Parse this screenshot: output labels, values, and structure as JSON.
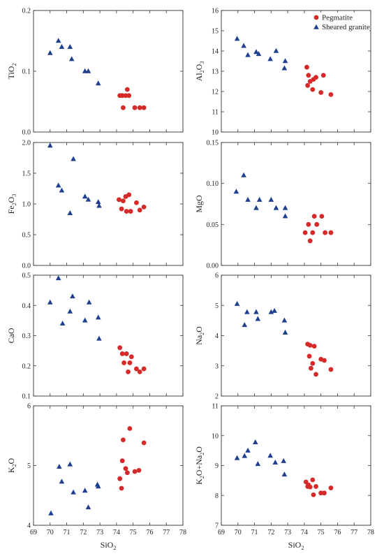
{
  "chart_data": {
    "type": "scatter",
    "legend": {
      "placement": "top-right of upper-right panel",
      "entries": [
        {
          "label": "Pegmatite",
          "marker": "circle",
          "color": "#d62a2a"
        },
        {
          "label": "Sheared granite",
          "marker": "triangle",
          "color": "#1f3f8f"
        }
      ]
    },
    "x_axis": {
      "label_main": "SiO",
      "label_sub": "2",
      "ticks": [
        "69",
        "70",
        "71",
        "72",
        "73",
        "74",
        "75",
        "76",
        "77",
        "78"
      ],
      "range": [
        69,
        78
      ]
    },
    "panels": [
      {
        "id": "tio2",
        "ylabel": {
          "main": "TiO",
          "sub": "2",
          "tail": ""
        },
        "yticks": [
          "0.0",
          "0.1",
          "0.2"
        ],
        "yrange": [
          0,
          0.2
        ],
        "sheared_granite": [
          [
            70.0,
            0.13
          ],
          [
            70.5,
            0.15
          ],
          [
            70.7,
            0.14
          ],
          [
            71.2,
            0.14
          ],
          [
            71.3,
            0.12
          ],
          [
            72.1,
            0.1
          ],
          [
            72.3,
            0.1
          ],
          [
            72.9,
            0.08
          ]
        ],
        "pegmatite": [
          [
            74.2,
            0.06
          ],
          [
            74.35,
            0.06
          ],
          [
            74.4,
            0.04
          ],
          [
            74.55,
            0.06
          ],
          [
            74.65,
            0.07
          ],
          [
            74.75,
            0.06
          ],
          [
            75.1,
            0.04
          ],
          [
            75.4,
            0.04
          ],
          [
            75.65,
            0.04
          ]
        ]
      },
      {
        "id": "al2o3",
        "ylabel": {
          "main": "Al",
          "sub": "2",
          "tail": "O",
          "sub2": "3"
        },
        "yticks": [
          "10",
          "11",
          "12",
          "13",
          "14",
          "15",
          "16"
        ],
        "yrange": [
          10,
          16
        ],
        "sheared_granite": [
          [
            69.95,
            14.6
          ],
          [
            70.35,
            14.25
          ],
          [
            70.6,
            13.8
          ],
          [
            71.1,
            13.95
          ],
          [
            71.25,
            13.85
          ],
          [
            71.95,
            13.6
          ],
          [
            72.3,
            14.0
          ],
          [
            72.8,
            13.15
          ],
          [
            72.85,
            13.5
          ]
        ],
        "pegmatite": [
          [
            74.15,
            13.2
          ],
          [
            74.2,
            12.3
          ],
          [
            74.25,
            12.8
          ],
          [
            74.35,
            12.5
          ],
          [
            74.5,
            12.1
          ],
          [
            74.55,
            12.6
          ],
          [
            74.7,
            12.7
          ],
          [
            75.0,
            11.95
          ],
          [
            75.15,
            12.8
          ],
          [
            75.6,
            11.85
          ]
        ]
      },
      {
        "id": "fe2o3",
        "ylabel": {
          "main": "Fe",
          "sub": "2",
          "tail": "O",
          "sub2": "3"
        },
        "yticks": [
          "0.0",
          "0.5",
          "1.0",
          "1.5",
          "2.0"
        ],
        "yrange": [
          0,
          2.0
        ],
        "sheared_granite": [
          [
            70.0,
            1.95
          ],
          [
            70.5,
            1.3
          ],
          [
            70.7,
            1.22
          ],
          [
            71.2,
            0.85
          ],
          [
            71.4,
            1.73
          ],
          [
            72.1,
            1.12
          ],
          [
            72.3,
            1.07
          ],
          [
            72.9,
            1.03
          ],
          [
            72.95,
            0.97
          ]
        ],
        "pegmatite": [
          [
            74.15,
            1.07
          ],
          [
            74.3,
            0.92
          ],
          [
            74.4,
            1.05
          ],
          [
            74.55,
            1.12
          ],
          [
            74.6,
            0.88
          ],
          [
            74.75,
            1.15
          ],
          [
            74.85,
            0.88
          ],
          [
            75.2,
            1.02
          ],
          [
            75.4,
            0.9
          ],
          [
            75.65,
            0.95
          ]
        ]
      },
      {
        "id": "mgo",
        "ylabel": {
          "main": "MgO",
          "sub": "",
          "tail": ""
        },
        "yticks": [
          "0.00",
          "0.05",
          "0.10",
          "0.15"
        ],
        "yrange": [
          0,
          0.15
        ],
        "sheared_granite": [
          [
            69.9,
            0.09
          ],
          [
            70.35,
            0.11
          ],
          [
            70.6,
            0.08
          ],
          [
            71.1,
            0.07
          ],
          [
            71.3,
            0.08
          ],
          [
            72.0,
            0.08
          ],
          [
            72.3,
            0.07
          ],
          [
            72.85,
            0.06
          ],
          [
            72.85,
            0.07
          ]
        ],
        "pegmatite": [
          [
            74.05,
            0.04
          ],
          [
            74.25,
            0.05
          ],
          [
            74.35,
            0.03
          ],
          [
            74.5,
            0.04
          ],
          [
            74.6,
            0.06
          ],
          [
            74.75,
            0.05
          ],
          [
            75.05,
            0.06
          ],
          [
            75.25,
            0.04
          ],
          [
            75.6,
            0.04
          ]
        ]
      },
      {
        "id": "cao",
        "ylabel": {
          "main": "CaO",
          "sub": "",
          "tail": ""
        },
        "yticks": [
          "0.1",
          "0.2",
          "0.3",
          "0.4",
          "0.5"
        ],
        "yrange": [
          0.1,
          0.5
        ],
        "sheared_granite": [
          [
            70.0,
            0.41
          ],
          [
            70.5,
            0.49
          ],
          [
            70.75,
            0.34
          ],
          [
            71.2,
            0.38
          ],
          [
            71.35,
            0.43
          ],
          [
            72.1,
            0.35
          ],
          [
            72.35,
            0.41
          ],
          [
            72.9,
            0.36
          ],
          [
            72.95,
            0.29
          ]
        ],
        "pegmatite": [
          [
            74.2,
            0.26
          ],
          [
            74.35,
            0.24
          ],
          [
            74.45,
            0.21
          ],
          [
            74.6,
            0.24
          ],
          [
            74.7,
            0.18
          ],
          [
            74.8,
            0.21
          ],
          [
            74.9,
            0.23
          ],
          [
            75.2,
            0.19
          ],
          [
            75.4,
            0.18
          ],
          [
            75.65,
            0.19
          ]
        ]
      },
      {
        "id": "na2o",
        "ylabel": {
          "main": "Na",
          "sub": "2",
          "tail": "O"
        },
        "yticks": [
          "2",
          "3",
          "4",
          "5",
          "6"
        ],
        "yrange": [
          2,
          6
        ],
        "sheared_granite": [
          [
            69.95,
            5.05
          ],
          [
            70.4,
            4.35
          ],
          [
            70.55,
            4.78
          ],
          [
            71.1,
            4.78
          ],
          [
            71.2,
            4.55
          ],
          [
            72.0,
            4.78
          ],
          [
            72.2,
            4.82
          ],
          [
            72.8,
            4.5
          ],
          [
            72.85,
            4.1
          ]
        ],
        "pegmatite": [
          [
            74.2,
            3.72
          ],
          [
            74.3,
            3.32
          ],
          [
            74.35,
            3.68
          ],
          [
            74.4,
            2.92
          ],
          [
            74.5,
            3.08
          ],
          [
            74.6,
            3.65
          ],
          [
            74.7,
            2.72
          ],
          [
            75.0,
            3.22
          ],
          [
            75.2,
            3.18
          ],
          [
            75.6,
            2.88
          ]
        ]
      },
      {
        "id": "k2o",
        "ylabel": {
          "main": "K",
          "sub": "2",
          "tail": "O"
        },
        "yticks": [
          "4",
          "5",
          "6"
        ],
        "yrange": [
          4,
          6
        ],
        "sheared_granite": [
          [
            70.05,
            4.2
          ],
          [
            70.55,
            4.98
          ],
          [
            70.7,
            4.73
          ],
          [
            71.2,
            5.02
          ],
          [
            71.4,
            4.55
          ],
          [
            72.1,
            4.58
          ],
          [
            72.3,
            4.3
          ],
          [
            72.85,
            4.68
          ],
          [
            72.9,
            4.65
          ]
        ],
        "pegmatite": [
          [
            74.2,
            4.78
          ],
          [
            74.3,
            4.62
          ],
          [
            74.35,
            5.08
          ],
          [
            74.4,
            5.43
          ],
          [
            74.55,
            4.95
          ],
          [
            74.65,
            4.88
          ],
          [
            74.8,
            5.62
          ],
          [
            75.1,
            4.9
          ],
          [
            75.35,
            4.92
          ],
          [
            75.65,
            5.38
          ]
        ]
      },
      {
        "id": "k2o_na2o",
        "ylabel": {
          "main": "K",
          "sub": "2",
          "tail": "O+Na",
          "sub2": "2",
          "tail2": "O"
        },
        "yticks": [
          "7",
          "8",
          "9",
          "10",
          "11"
        ],
        "yrange": [
          7,
          11
        ],
        "sheared_granite": [
          [
            69.95,
            9.25
          ],
          [
            70.4,
            9.32
          ],
          [
            70.6,
            9.5
          ],
          [
            71.05,
            9.78
          ],
          [
            71.2,
            9.05
          ],
          [
            71.95,
            9.33
          ],
          [
            72.25,
            9.1
          ],
          [
            72.75,
            9.15
          ],
          [
            72.8,
            8.7
          ]
        ],
        "pegmatite": [
          [
            74.1,
            8.45
          ],
          [
            74.2,
            8.3
          ],
          [
            74.25,
            8.35
          ],
          [
            74.35,
            8.28
          ],
          [
            74.5,
            8.52
          ],
          [
            74.55,
            8.02
          ],
          [
            74.7,
            8.3
          ],
          [
            75.0,
            8.08
          ],
          [
            75.2,
            8.08
          ],
          [
            75.6,
            8.25
          ]
        ]
      }
    ]
  }
}
